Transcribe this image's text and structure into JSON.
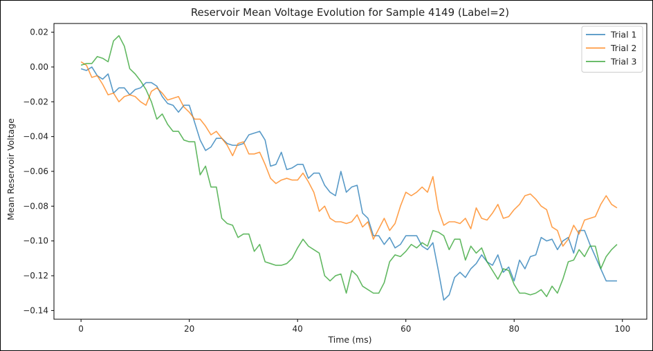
{
  "chart_data": {
    "type": "line",
    "title": "Reservoir Mean Voltage Evolution for Sample 4149 (Label=2)",
    "xlabel": "Time (ms)",
    "ylabel": "Mean Reservoir Voltage",
    "xlim": [
      -0.1,
      1.0
    ],
    "ylim": [
      -0.145,
      0.025
    ],
    "xticks": [
      0,
      20,
      40,
      60,
      80,
      100
    ],
    "yticks": [
      0.02,
      0.0,
      -0.02,
      -0.04,
      -0.06,
      -0.08,
      -0.1,
      -0.12,
      -0.14
    ],
    "xtick_labels": [
      "0",
      "20",
      "40",
      "60",
      "80",
      "100"
    ],
    "ytick_labels": [
      "0.02",
      "0.00",
      "−0.02",
      "−0.04",
      "−0.06",
      "−0.08",
      "−0.10",
      "−0.12",
      "−0.14"
    ],
    "grid": false,
    "legend_position": "top-right",
    "series": [
      {
        "name": "Trial 1",
        "color": "#1f77b4",
        "values": [
          -0.001,
          -0.002,
          0.0,
          -0.005,
          -0.007,
          -0.004,
          -0.015,
          -0.012,
          -0.012,
          -0.016,
          -0.013,
          -0.012,
          -0.009,
          -0.009,
          -0.011,
          -0.017,
          -0.021,
          -0.022,
          -0.026,
          -0.022,
          -0.022,
          -0.032,
          -0.042,
          -0.048,
          -0.046,
          -0.041,
          -0.041,
          -0.044,
          -0.045,
          -0.045,
          -0.044,
          -0.039,
          -0.038,
          -0.037,
          -0.042,
          -0.057,
          -0.056,
          -0.049,
          -0.059,
          -0.058,
          -0.056,
          -0.056,
          -0.064,
          -0.061,
          -0.061,
          -0.068,
          -0.072,
          -0.074,
          -0.06,
          -0.072,
          -0.069,
          -0.068,
          -0.084,
          -0.087,
          -0.097,
          -0.097,
          -0.102,
          -0.098,
          -0.104,
          -0.102,
          -0.097,
          -0.097,
          -0.097,
          -0.103,
          -0.105,
          -0.101,
          -0.117,
          -0.134,
          -0.131,
          -0.121,
          -0.118,
          -0.121,
          -0.116,
          -0.113,
          -0.108,
          -0.112,
          -0.114,
          -0.108,
          -0.118,
          -0.115,
          -0.123,
          -0.111,
          -0.116,
          -0.109,
          -0.108,
          -0.098,
          -0.1,
          -0.099,
          -0.105,
          -0.1,
          -0.098,
          -0.107,
          -0.094,
          -0.094,
          -0.102,
          -0.109,
          -0.116,
          -0.123,
          -0.123,
          -0.123
        ]
      },
      {
        "name": "Trial 2",
        "color": "#ff7f0e",
        "values": [
          0.003,
          0.001,
          -0.006,
          -0.005,
          -0.01,
          -0.016,
          -0.015,
          -0.02,
          -0.017,
          -0.016,
          -0.017,
          -0.02,
          -0.022,
          -0.014,
          -0.012,
          -0.015,
          -0.019,
          -0.018,
          -0.017,
          -0.023,
          -0.026,
          -0.03,
          -0.03,
          -0.034,
          -0.039,
          -0.037,
          -0.041,
          -0.045,
          -0.051,
          -0.044,
          -0.043,
          -0.05,
          -0.05,
          -0.049,
          -0.056,
          -0.064,
          -0.067,
          -0.065,
          -0.064,
          -0.065,
          -0.065,
          -0.061,
          -0.066,
          -0.072,
          -0.083,
          -0.08,
          -0.087,
          -0.089,
          -0.089,
          -0.09,
          -0.089,
          -0.085,
          -0.092,
          -0.089,
          -0.099,
          -0.093,
          -0.087,
          -0.094,
          -0.09,
          -0.08,
          -0.072,
          -0.074,
          -0.072,
          -0.069,
          -0.072,
          -0.063,
          -0.082,
          -0.091,
          -0.089,
          -0.089,
          -0.09,
          -0.087,
          -0.093,
          -0.081,
          -0.087,
          -0.088,
          -0.084,
          -0.079,
          -0.087,
          -0.086,
          -0.082,
          -0.079,
          -0.074,
          -0.073,
          -0.076,
          -0.08,
          -0.082,
          -0.092,
          -0.094,
          -0.103,
          -0.099,
          -0.091,
          -0.096,
          -0.088,
          -0.087,
          -0.086,
          -0.079,
          -0.074,
          -0.079,
          -0.081
        ]
      },
      {
        "name": "Trial 3",
        "color": "#2ca02c",
        "values": [
          0.001,
          0.002,
          0.002,
          0.006,
          0.005,
          0.003,
          0.015,
          0.018,
          0.012,
          -0.001,
          -0.004,
          -0.008,
          -0.013,
          -0.02,
          -0.03,
          -0.027,
          -0.033,
          -0.037,
          -0.037,
          -0.042,
          -0.043,
          -0.043,
          -0.062,
          -0.057,
          -0.069,
          -0.069,
          -0.087,
          -0.09,
          -0.091,
          -0.098,
          -0.096,
          -0.096,
          -0.106,
          -0.102,
          -0.112,
          -0.113,
          -0.114,
          -0.114,
          -0.113,
          -0.11,
          -0.104,
          -0.099,
          -0.103,
          -0.105,
          -0.107,
          -0.12,
          -0.123,
          -0.12,
          -0.119,
          -0.13,
          -0.117,
          -0.12,
          -0.126,
          -0.128,
          -0.13,
          -0.13,
          -0.124,
          -0.112,
          -0.108,
          -0.109,
          -0.106,
          -0.102,
          -0.104,
          -0.101,
          -0.103,
          -0.094,
          -0.095,
          -0.097,
          -0.105,
          -0.099,
          -0.099,
          -0.111,
          -0.103,
          -0.107,
          -0.104,
          -0.112,
          -0.117,
          -0.122,
          -0.116,
          -0.117,
          -0.125,
          -0.13,
          -0.13,
          -0.131,
          -0.13,
          -0.128,
          -0.132,
          -0.126,
          -0.13,
          -0.122,
          -0.112,
          -0.111,
          -0.105,
          -0.109,
          -0.103,
          -0.103,
          -0.116,
          -0.109,
          -0.105,
          -0.102
        ]
      }
    ]
  }
}
